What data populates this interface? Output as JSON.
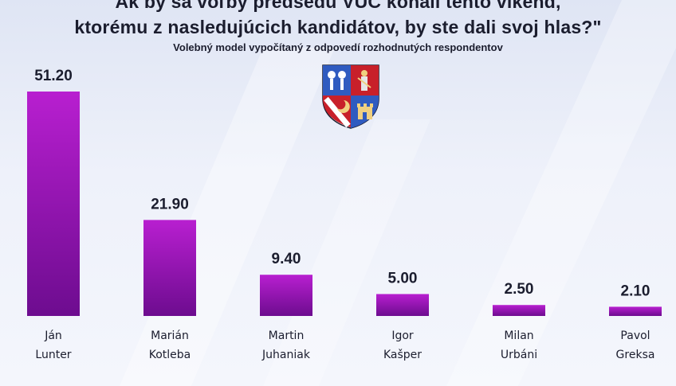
{
  "header": {
    "title_line1": "Ak by sa voľby predsedu VÚC konali tento víkend,",
    "title_line2": "ktorému z nasledujúcich kandidátov, by ste dali svoj hlas?\"",
    "subtitle": "Volebný model vypočítaný z odpovedí rozhodnutých respondentov"
  },
  "crest_icon": "region-coat-of-arms-icon",
  "colors": {
    "bar_top": "#b81fd0",
    "bar_bottom": "#6d0c8f"
  },
  "chart_data": {
    "type": "bar",
    "title": "Ak by sa voľby predsedu VÚC konali tento víkend, ktorému z nasledujúcich kandidátov, by ste dali svoj hlas?\"",
    "subtitle": "Volebný model vypočítaný z odpovedí rozhodnutých respondentov",
    "categories": [
      [
        "Ján",
        "Lunter"
      ],
      [
        "Marián",
        "Kotleba"
      ],
      [
        "Martin",
        "Juhaniak"
      ],
      [
        "Igor",
        "Kašper"
      ],
      [
        "Milan",
        "Urbáni"
      ],
      [
        "Pavol",
        "Greksa"
      ]
    ],
    "values": [
      51.2,
      21.9,
      9.4,
      5.0,
      2.5,
      2.1
    ],
    "value_labels": [
      "51.20",
      "21.90",
      "9.40",
      "5.00",
      "2.50",
      "2.10"
    ],
    "ylim": [
      0,
      51.2
    ],
    "grid": false,
    "legend": "none"
  }
}
